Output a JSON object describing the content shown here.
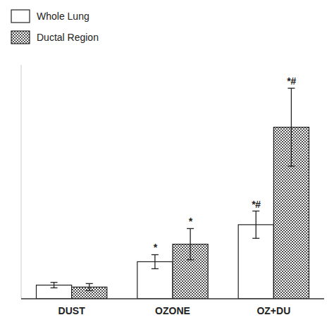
{
  "chart_data": {
    "type": "bar",
    "categories": [
      "DUST",
      "OZONE",
      "OZ+DU"
    ],
    "series": [
      {
        "name": "Whole Lung",
        "color": "#ffffff",
        "values": [
          3.5,
          9.5,
          19.0
        ],
        "errors": [
          0.7,
          1.8,
          3.5
        ],
        "annotations": [
          null,
          "*",
          "*#"
        ]
      },
      {
        "name": "Ductal Region",
        "color": "#000000",
        "values": [
          3.0,
          14.0,
          44.0
        ],
        "errors": [
          0.9,
          4.0,
          10.0
        ],
        "annotations": [
          null,
          "*",
          "*#"
        ]
      }
    ],
    "ylim": [
      0,
      60
    ],
    "tick_labels": "x",
    "legend": "upper left"
  }
}
